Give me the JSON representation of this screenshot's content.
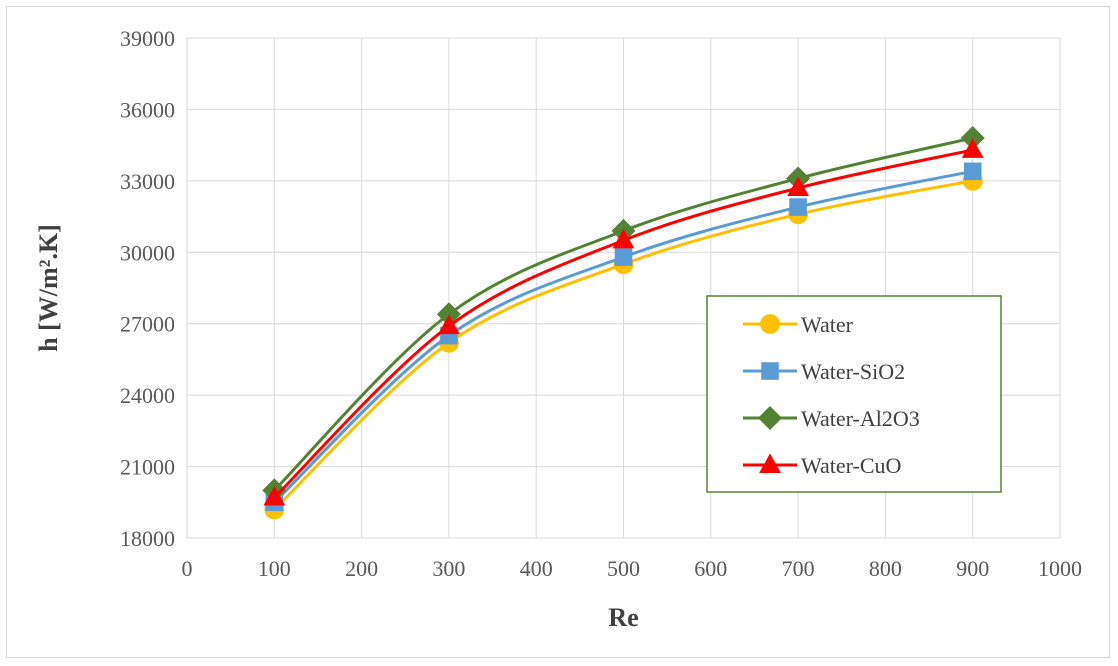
{
  "chart_data": {
    "type": "line",
    "xlabel": "Re",
    "ylabel": "h [W/m².K]",
    "xlim": [
      0,
      1000
    ],
    "ylim": [
      18000,
      39000
    ],
    "xticks": [
      "0",
      "100",
      "200",
      "300",
      "400",
      "500",
      "600",
      "700",
      "800",
      "900",
      "1000"
    ],
    "yticks": [
      "18000",
      "21000",
      "24000",
      "27000",
      "30000",
      "33000",
      "36000",
      "39000"
    ],
    "grid": true,
    "legend_position": "right",
    "x": [
      100,
      300,
      500,
      700,
      900
    ],
    "series": [
      {
        "name": "Water",
        "color": "#ffc000",
        "marker": "circle",
        "values": [
          19200,
          26200,
          29500,
          31600,
          33000
        ]
      },
      {
        "name": "Water-SiO2",
        "color": "#5b9bd5",
        "marker": "square",
        "values": [
          19500,
          26500,
          29800,
          31900,
          33400
        ]
      },
      {
        "name": "Water-Al2O3",
        "color": "#548235",
        "marker": "diamond",
        "values": [
          20000,
          27400,
          30900,
          33100,
          34800
        ]
      },
      {
        "name": "Water-CuO",
        "color": "#ff0000",
        "marker": "triangle",
        "values": [
          19700,
          26900,
          30500,
          32700,
          34300
        ]
      }
    ]
  }
}
